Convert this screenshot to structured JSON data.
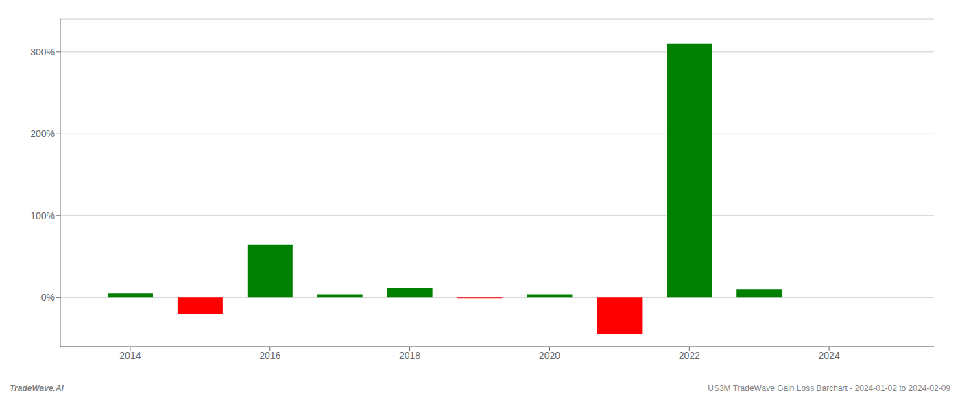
{
  "chart_data": {
    "type": "bar",
    "x": [
      2014,
      2015,
      2016,
      2017,
      2018,
      2019,
      2020,
      2021,
      2022,
      2023
    ],
    "values": [
      5.0,
      -20.0,
      65.0,
      4.0,
      12.0,
      -0.8,
      4.0,
      -45.0,
      310.0,
      10.0
    ],
    "colors": [
      "#008000",
      "#ff0000",
      "#008000",
      "#008000",
      "#008000",
      "#ff0000",
      "#008000",
      "#ff0000",
      "#008000",
      "#008000"
    ],
    "xlim": [
      2013.0,
      2025.5
    ],
    "xticks": [
      2014,
      2016,
      2018,
      2020,
      2022,
      2024
    ],
    "ylim": [
      -60,
      340
    ],
    "yticks": [
      {
        "value": 0,
        "label": "0%"
      },
      {
        "value": 100,
        "label": "100%"
      },
      {
        "value": 200,
        "label": "200%"
      },
      {
        "value": 300,
        "label": "300%"
      }
    ],
    "grid": true,
    "annotations": [
      "TradeWave.AI",
      "US3M TradeWave Gain Loss Barchart - 2024-01-02 to 2024-02-09"
    ]
  }
}
